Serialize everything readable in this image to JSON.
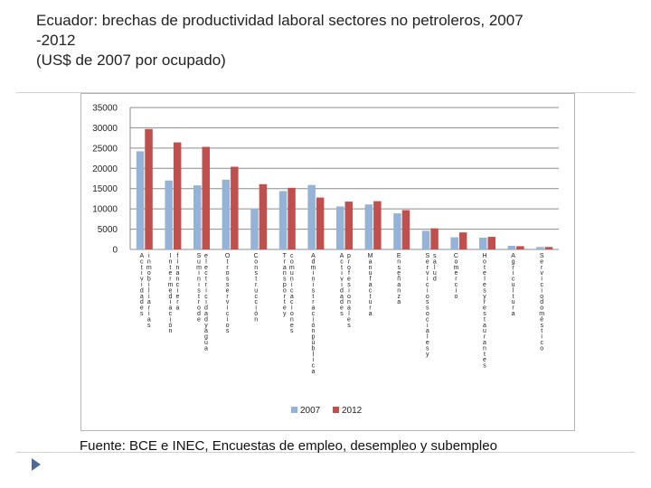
{
  "slide": {
    "title_line1": "Ecuador: brechas de productividad laboral sectores no petroleros, 2007",
    "title_line2": "-2012",
    "title_line3": "(US$ de 2007 por ocupado)",
    "source": "Fuente: BCE e INEC,  Encuestas de empleo, desempleo y subempleo",
    "bullet_icon": "triangle-bullet-icon",
    "accent_color": "#4f6a9a"
  },
  "chart_data": {
    "type": "bar",
    "title": "",
    "xlabel": "",
    "ylabel": "",
    "ylim": [
      0,
      35000
    ],
    "yticks": [
      0,
      5000,
      10000,
      15000,
      20000,
      25000,
      30000,
      35000
    ],
    "grid": true,
    "legend_position": "bottom",
    "categories": [
      "Actividades inmobiliarias",
      "Intermediación financiera",
      "Suministro de electricidad y agua",
      "Otros servicios",
      "Construcción",
      "Transporte y comunicaciones",
      "Administración pública",
      "Actividades profesionales",
      "Manufactura",
      "Enseñanza",
      "Servicios sociales y salud",
      "Comercio",
      "Hoteles y restaurantes",
      "Agricultura",
      "Servicio doméstico"
    ],
    "series": [
      {
        "name": "2007",
        "color": "#95b3d7",
        "values": [
          24200,
          17000,
          15800,
          17200,
          10100,
          14400,
          15900,
          10600,
          11100,
          8900,
          4600,
          3000,
          2900,
          900,
          600
        ]
      },
      {
        "name": "2012",
        "color": "#c0504d",
        "values": [
          29700,
          26400,
          25300,
          20400,
          16100,
          15200,
          12800,
          11800,
          11900,
          9700,
          5200,
          4200,
          3100,
          800,
          600
        ]
      }
    ]
  }
}
